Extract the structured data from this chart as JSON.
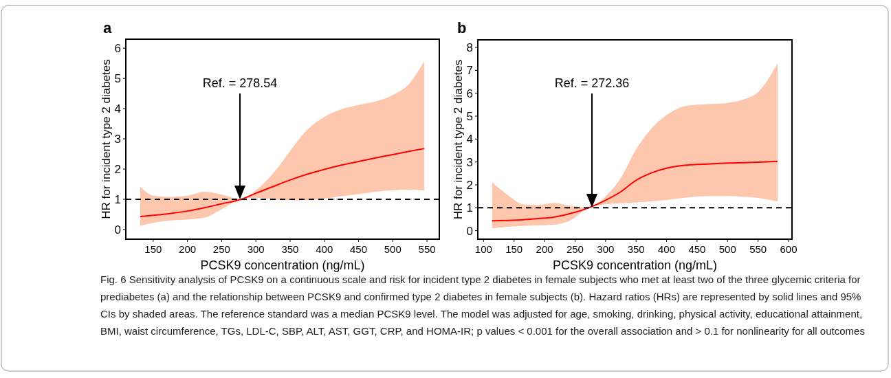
{
  "chart_data": [
    {
      "type": "line",
      "title": "a",
      "xlabel": "PCSK9 concentration (ng/mL)",
      "ylabel": "HR for incident type 2 diabetes",
      "xlim": [
        110,
        568
      ],
      "xticks": [
        150,
        200,
        250,
        300,
        350,
        400,
        450,
        500,
        550
      ],
      "ylim": [
        -0.32,
        6.3
      ],
      "yticks": [
        0,
        1,
        2,
        3,
        4,
        5,
        6
      ],
      "grid": false,
      "x": [
        131,
        150,
        175,
        200,
        225,
        250,
        278.54,
        300,
        325,
        350,
        375,
        400,
        425,
        450,
        475,
        500,
        525,
        546
      ],
      "series": [
        {
          "color": "#ff0000",
          "values": [
            0.43,
            0.47,
            0.53,
            0.61,
            0.72,
            0.85,
            1.0,
            1.2,
            1.42,
            1.64,
            1.83,
            1.99,
            2.13,
            2.25,
            2.37,
            2.48,
            2.59,
            2.68
          ],
          "lower": [
            0.12,
            0.22,
            0.3,
            0.33,
            0.39,
            0.67,
            1.0,
            1.05,
            1.0,
            0.97,
            0.97,
            1.02,
            1.1,
            1.17,
            1.25,
            1.3,
            1.32,
            1.29
          ],
          "upper": [
            1.42,
            1.12,
            1.08,
            1.12,
            1.25,
            1.16,
            1.0,
            1.3,
            1.85,
            2.6,
            3.3,
            3.73,
            3.98,
            4.12,
            4.24,
            4.45,
            4.85,
            5.57
          ]
        }
      ],
      "ref_lines": [
        {
          "axis": "y",
          "value": 1,
          "line_style": "dashed"
        }
      ],
      "annotations": [
        "Ref. = 278.54",
        "Fig. 6 Sensitivity analysis of PCSK9 on a continuous scale and risk for incident type 2 diabetes in female subjects who met at least two of the three glycemic criteria for prediabetes (a) and the relationship between PCSK9 and confirmed type 2 diabetes in female subjects (b). Hazard ratios (HRs) are represented by solid lines and 95% CIs by shaded areas. The reference standard was a median PCSK9 level. The model was adjusted for age, smoking, drinking, physical activity, educational attainment, BMI, waist circumference, TGs, LDL-C, SBP, ALT, AST, GGT, CRP, and HOMA-IR; p values < 0.001 for the overall association and > 0.1 for nonlinearity for all outcomes"
      ]
    },
    {
      "type": "line",
      "title": "b",
      "xlabel": "PCSK9 concentration (ng/mL)",
      "ylabel": "HR for incident type 2 diabetes",
      "xlim": [
        90.6,
        605.6
      ],
      "xticks": [
        100,
        150,
        200,
        250,
        300,
        350,
        400,
        450,
        500,
        550,
        600
      ],
      "ylim": [
        -0.37,
        8.33
      ],
      "yticks": [
        0,
        1,
        2,
        3,
        4,
        5,
        6,
        7,
        8
      ],
      "grid": false,
      "x": [
        114,
        140,
        165,
        190,
        215,
        240,
        272.36,
        300,
        325,
        350,
        375,
        400,
        425,
        450,
        475,
        500,
        525,
        550,
        582
      ],
      "series": [
        {
          "color": "#ff0000",
          "values": [
            0.43,
            0.45,
            0.48,
            0.53,
            0.59,
            0.73,
            1.0,
            1.33,
            1.7,
            2.2,
            2.52,
            2.73,
            2.84,
            2.89,
            2.92,
            2.95,
            2.97,
            2.99,
            3.03
          ],
          "lower": [
            0.1,
            0.17,
            0.21,
            0.23,
            0.26,
            0.42,
            1.0,
            1.15,
            1.2,
            1.23,
            1.28,
            1.34,
            1.42,
            1.49,
            1.51,
            1.51,
            1.48,
            1.43,
            1.27
          ],
          "upper": [
            2.11,
            1.55,
            1.15,
            1.12,
            1.21,
            1.1,
            1.0,
            1.5,
            2.3,
            3.55,
            4.45,
            5.05,
            5.4,
            5.5,
            5.53,
            5.58,
            5.72,
            6.05,
            7.3
          ]
        }
      ],
      "ref_lines": [
        {
          "axis": "y",
          "value": 1,
          "line_style": "dashed"
        }
      ],
      "annotations": [
        "Ref. = 272.36"
      ]
    }
  ]
}
